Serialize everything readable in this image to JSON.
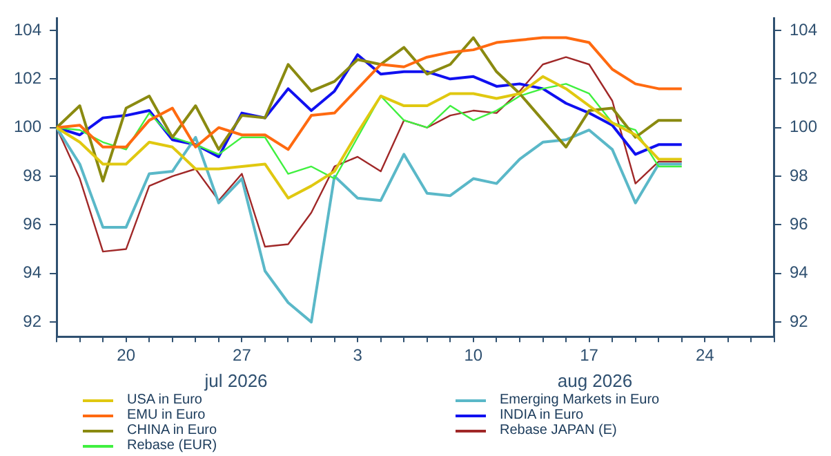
{
  "chart_data": {
    "type": "line",
    "categories": [
      null,
      null,
      null,
      "20",
      null,
      null,
      null,
      null,
      "27",
      null,
      null,
      null,
      null,
      "3",
      null,
      null,
      null,
      null,
      "10",
      null,
      null,
      null,
      null,
      "17",
      null,
      null,
      null,
      null,
      "24",
      null,
      null,
      null
    ],
    "series": [
      {
        "name": "USA in Euro",
        "color": "#e0c810",
        "values": [
          100,
          99.4,
          98.5,
          98.5,
          99.4,
          99.2,
          98.3,
          98.3,
          98.4,
          98.5,
          97.1,
          97.6,
          98.2,
          99.8,
          101.3,
          100.9,
          100.9,
          101.4,
          101.4,
          101.2,
          101.4,
          102.1,
          101.6,
          100.9,
          100.2,
          99.7,
          98.7,
          98.7,
          null,
          null,
          null,
          null
        ]
      },
      {
        "name": "EMU in Euro",
        "color": "#ff6a10",
        "values": [
          100,
          100.1,
          99.2,
          99.2,
          100.3,
          100.8,
          99.2,
          100,
          99.7,
          99.7,
          99.1,
          100.5,
          100.6,
          101.6,
          102.6,
          102.5,
          102.9,
          103.1,
          103.2,
          103.5,
          103.6,
          103.7,
          103.7,
          103.5,
          102.4,
          101.8,
          101.6,
          101.6,
          null,
          null,
          null,
          null
        ]
      },
      {
        "name": "CHINA in Euro",
        "color": "#8a8a10",
        "values": [
          100,
          100.9,
          97.8,
          100.8,
          101.3,
          99.6,
          100.9,
          99.1,
          100.5,
          100.4,
          102.6,
          101.5,
          101.9,
          102.8,
          102.6,
          103.3,
          102.2,
          102.6,
          103.7,
          102.3,
          101.4,
          100.3,
          99.2,
          100.7,
          100.8,
          99.6,
          100.3,
          100.3,
          null,
          null,
          null,
          null
        ]
      },
      {
        "name": "Rebase (EUR)",
        "color": "#40f040",
        "values": [
          100,
          99.9,
          99.4,
          99.1,
          100.6,
          99.6,
          99.3,
          98.9,
          99.6,
          99.6,
          98.1,
          98.4,
          97.9,
          99.6,
          101.3,
          100.3,
          100,
          100.9,
          100.3,
          100.7,
          101.3,
          101.6,
          101.8,
          101.4,
          100.2,
          99.9,
          98.4,
          98.4,
          null,
          null,
          null,
          null
        ]
      },
      {
        "name": "Emerging Markets in Euro",
        "color": "#5ab8c8",
        "values": [
          100,
          98.5,
          95.9,
          95.9,
          98.1,
          98.2,
          99.6,
          96.9,
          97.9,
          94.1,
          92.8,
          92,
          98,
          97.1,
          97,
          98.9,
          97.3,
          97.2,
          97.9,
          97.7,
          98.7,
          99.4,
          99.5,
          99.9,
          99.1,
          96.9,
          98.5,
          98.5,
          null,
          null,
          null,
          null
        ]
      },
      {
        "name": "INDIA in Euro",
        "color": "#1010f0",
        "values": [
          100,
          99.7,
          100.4,
          100.5,
          100.7,
          99.5,
          99.3,
          98.8,
          100.6,
          100.4,
          101.6,
          100.7,
          101.5,
          103,
          102.2,
          102.3,
          102.3,
          102,
          102.1,
          101.7,
          101.8,
          101.6,
          101,
          100.6,
          100.1,
          98.9,
          99.3,
          99.3,
          null,
          null,
          null,
          null
        ]
      },
      {
        "name": "Rebase JAPAN (E)",
        "color": "#a02828",
        "values": [
          100,
          97.9,
          94.9,
          95,
          97.6,
          98,
          98.3,
          97,
          98.1,
          95.1,
          95.2,
          96.5,
          98.4,
          98.8,
          98.2,
          100.3,
          100,
          100.5,
          100.7,
          100.6,
          101.5,
          102.6,
          102.9,
          102.6,
          101.1,
          97.7,
          98.6,
          98.6,
          null,
          null,
          null,
          null
        ]
      }
    ],
    "ylim": [
      91.4,
      104.5
    ],
    "yticks": [
      92,
      94,
      96,
      98,
      100,
      102,
      104
    ],
    "y2lim": [
      91.4,
      104.5
    ],
    "y2ticks": [
      92,
      94,
      96,
      98,
      100,
      102,
      104
    ],
    "annotations": [
      "jul 2026",
      "aug 2026"
    ],
    "grid": false,
    "legend": "bottom",
    "marker": "none",
    "line_style": "solid"
  }
}
